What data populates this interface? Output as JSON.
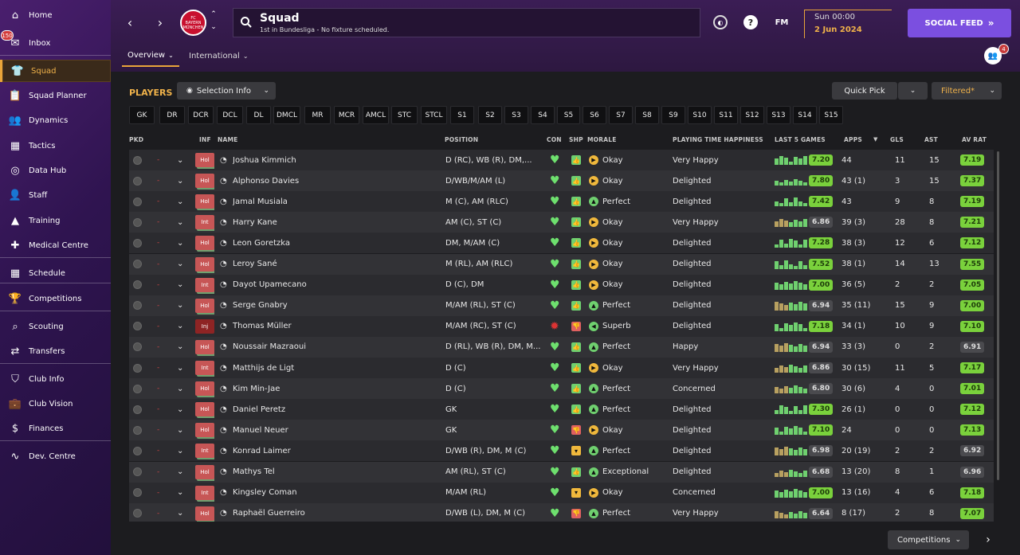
{
  "sidebar": {
    "items": [
      {
        "label": "Home",
        "icon": "home-icon"
      },
      {
        "label": "Inbox",
        "icon": "inbox-icon",
        "badge": "150"
      },
      {
        "label": "Squad",
        "icon": "shirt-icon",
        "active": true
      },
      {
        "label": "Squad Planner",
        "icon": "clipboard-icon"
      },
      {
        "label": "Dynamics",
        "icon": "people-icon"
      },
      {
        "label": "Tactics",
        "icon": "tactics-board-icon"
      },
      {
        "label": "Data Hub",
        "icon": "data-hub-icon"
      },
      {
        "label": "Staff",
        "icon": "staff-icon"
      },
      {
        "label": "Training",
        "icon": "training-cone-icon"
      },
      {
        "label": "Medical Centre",
        "icon": "medical-icon"
      },
      {
        "label": "Schedule",
        "icon": "calendar-icon"
      },
      {
        "label": "Competitions",
        "icon": "trophy-icon"
      },
      {
        "label": "Scouting",
        "icon": "magnifier-icon"
      },
      {
        "label": "Transfers",
        "icon": "transfer-arrows-icon"
      },
      {
        "label": "Club Info",
        "icon": "shield-icon"
      },
      {
        "label": "Club Vision",
        "icon": "briefcase-icon"
      },
      {
        "label": "Finances",
        "icon": "money-icon"
      },
      {
        "label": "Dev. Centre",
        "icon": "dev-centre-icon"
      }
    ]
  },
  "header": {
    "title": "Squad",
    "subtitle": "1st in Bundesliga - No fixture scheduled.",
    "club_badge": "FC BAYERN MÜNCHEN",
    "fm_label": "FM",
    "day_time": "Sun 00:00",
    "date": "2 Jun 2024",
    "social_feed_label": "SOCIAL FEED",
    "social_badge": "4",
    "tabs": [
      {
        "label": "Overview"
      },
      {
        "label": "International"
      }
    ]
  },
  "content": {
    "players_title": "PLAYERS",
    "selection_info": "Selection Info",
    "quick_pick": "Quick Pick",
    "filtered": "Filtered*",
    "competitions": "Competitions",
    "positions": [
      "GK",
      "DR",
      "DCR",
      "DCL",
      "DL",
      "DMCL",
      "MR",
      "MCR",
      "AMCL",
      "STC",
      "STCL",
      "S1",
      "S2",
      "S3",
      "S4",
      "S5",
      "S6",
      "S7",
      "S8",
      "S9",
      "S10",
      "S11",
      "S12",
      "S13",
      "S14",
      "S15"
    ],
    "columns": {
      "pkd": "PKD",
      "inf": "INF",
      "name": "NAME",
      "position": "POSITION",
      "con": "CON",
      "shp": "SHP",
      "morale": "MORALE",
      "pth": "PLAYING TIME HAPPINESS",
      "last5": "LAST 5 GAMES",
      "apps": "APPS",
      "gls": "GLS",
      "ast": "AST",
      "avrat": "AV RAT"
    }
  },
  "players": [
    {
      "inf": "Hol",
      "name": "Joshua Kimmich",
      "position": "D (RC), WB (R), DM,...",
      "shp": "up",
      "morale": "Okay",
      "pth": "Very Happy",
      "form": "7.20",
      "apps": "44",
      "gls": "11",
      "ast": "15",
      "avr": "7.19",
      "avr_green": true
    },
    {
      "inf": "Hol",
      "name": "Alphonso Davies",
      "position": "D/WB/M/AM (L)",
      "shp": "up",
      "morale": "Okay",
      "pth": "Delighted",
      "form": "7.80",
      "apps": "43 (1)",
      "gls": "3",
      "ast": "15",
      "avr": "7.37",
      "avr_green": true
    },
    {
      "inf": "Hol",
      "name": "Jamal Musiala",
      "position": "M (C), AM (RLC)",
      "shp": "up",
      "morale": "Perfect",
      "pth": "Delighted",
      "form": "7.42",
      "apps": "43",
      "gls": "9",
      "ast": "8",
      "avr": "7.19",
      "avr_green": true
    },
    {
      "inf": "Int",
      "name": "Harry Kane",
      "position": "AM (C), ST (C)",
      "shp": "up",
      "morale": "Okay",
      "pth": "Very Happy",
      "form": "6.86",
      "apps": "39 (3)",
      "gls": "28",
      "ast": "8",
      "avr": "7.21",
      "avr_green": true
    },
    {
      "inf": "Hol",
      "name": "Leon Goretzka",
      "position": "DM, M/AM (C)",
      "shp": "up",
      "morale": "Okay",
      "pth": "Delighted",
      "form": "7.28",
      "apps": "38 (3)",
      "gls": "12",
      "ast": "6",
      "avr": "7.12",
      "avr_green": true
    },
    {
      "inf": "Hol",
      "name": "Leroy Sané",
      "position": "M (RL), AM (RLC)",
      "shp": "up",
      "morale": "Okay",
      "pth": "Delighted",
      "form": "7.52",
      "apps": "38 (1)",
      "gls": "14",
      "ast": "13",
      "avr": "7.55",
      "avr_green": true
    },
    {
      "inf": "Int",
      "name": "Dayot Upamecano",
      "position": "D (C), DM",
      "shp": "up",
      "morale": "Okay",
      "pth": "Delighted",
      "form": "7.00",
      "apps": "36 (5)",
      "gls": "2",
      "ast": "2",
      "avr": "7.05",
      "avr_green": true
    },
    {
      "inf": "Hol",
      "name": "Serge Gnabry",
      "position": "M/AM (RL), ST (C)",
      "shp": "up",
      "morale": "Perfect",
      "pth": "Delighted",
      "form": "6.94",
      "apps": "35 (11)",
      "gls": "15",
      "ast": "9",
      "avr": "7.00",
      "avr_green": true
    },
    {
      "inf": "Inj",
      "name": "Thomas Müller",
      "position": "M/AM (RC), ST (C)",
      "shp": "down",
      "morale": "Superb",
      "pth": "Delighted",
      "form": "7.18",
      "apps": "34 (1)",
      "gls": "10",
      "ast": "9",
      "avr": "7.10",
      "avr_green": true
    },
    {
      "inf": "Hol",
      "name": "Noussair Mazraoui",
      "position": "D (RL), WB (R), DM, M...",
      "shp": "up",
      "morale": "Perfect",
      "pth": "Happy",
      "form": "6.94",
      "apps": "33 (3)",
      "gls": "0",
      "ast": "2",
      "avr": "6.91",
      "avr_green": false
    },
    {
      "inf": "Int",
      "name": "Matthijs de Ligt",
      "position": "D (C)",
      "shp": "up",
      "morale": "Okay",
      "pth": "Very Happy",
      "form": "6.86",
      "apps": "30 (15)",
      "gls": "11",
      "ast": "5",
      "avr": "7.17",
      "avr_green": true
    },
    {
      "inf": "Hol",
      "name": "Kim Min-Jae",
      "position": "D (C)",
      "shp": "up",
      "morale": "Perfect",
      "pth": "Concerned",
      "form": "6.80",
      "apps": "30 (6)",
      "gls": "4",
      "ast": "0",
      "avr": "7.01",
      "avr_green": true
    },
    {
      "inf": "Hol",
      "name": "Daniel Peretz",
      "position": "GK",
      "shp": "up",
      "morale": "Perfect",
      "pth": "Delighted",
      "form": "7.30",
      "apps": "26 (1)",
      "gls": "0",
      "ast": "0",
      "avr": "7.12",
      "avr_green": true
    },
    {
      "inf": "Hol",
      "name": "Manuel Neuer",
      "position": "GK",
      "shp": "down",
      "morale": "Okay",
      "pth": "Delighted",
      "form": "7.10",
      "apps": "24",
      "gls": "0",
      "ast": "0",
      "avr": "7.13",
      "avr_green": true
    },
    {
      "inf": "Int",
      "name": "Konrad Laimer",
      "position": "D/WB (R), DM, M (C)",
      "shp": "neutral",
      "morale": "Perfect",
      "pth": "Delighted",
      "form": "6.98",
      "apps": "20 (19)",
      "gls": "2",
      "ast": "2",
      "avr": "6.92",
      "avr_green": false
    },
    {
      "inf": "Hol",
      "name": "Mathys Tel",
      "position": "AM (RL), ST (C)",
      "shp": "up",
      "morale": "Exceptional",
      "pth": "Delighted",
      "form": "6.68",
      "apps": "13 (20)",
      "gls": "8",
      "ast": "1",
      "avr": "6.96",
      "avr_green": false
    },
    {
      "inf": "Int",
      "name": "Kingsley Coman",
      "position": "M/AM (RL)",
      "shp": "neutral",
      "morale": "Okay",
      "pth": "Concerned",
      "form": "7.00",
      "apps": "13 (16)",
      "gls": "4",
      "ast": "6",
      "avr": "7.18",
      "avr_green": true
    },
    {
      "inf": "Hol",
      "name": "Raphaël Guerreiro",
      "position": "D/WB (L), DM, M (C)",
      "shp": "down",
      "morale": "Perfect",
      "pth": "Very Happy",
      "form": "6.64",
      "apps": "8 (17)",
      "gls": "2",
      "ast": "8",
      "avr": "7.07",
      "avr_green": true
    }
  ],
  "colors": {
    "accent": "#e9a53a",
    "social": "#7b4fe0",
    "good": "#7ad13c",
    "sidebar": "#2f1450"
  }
}
